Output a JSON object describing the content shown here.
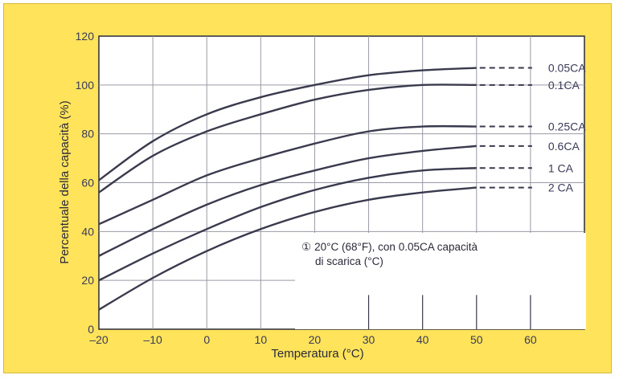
{
  "chart_data": {
    "type": "line",
    "title": "",
    "xlabel": "Temperatura (°C)",
    "ylabel": "Percentuale della capacità (%)",
    "xlim": [
      -20,
      70
    ],
    "ylim": [
      0,
      120
    ],
    "x_ticks": [
      -20,
      -10,
      0,
      10,
      20,
      30,
      40,
      50,
      60
    ],
    "x_tick_labels": [
      "–20",
      "–10",
      "0",
      "10",
      "20",
      "30",
      "40",
      "50",
      "60"
    ],
    "y_ticks": [
      0,
      20,
      40,
      60,
      80,
      100,
      120
    ],
    "grid": true,
    "legend": "none",
    "x": [
      -20,
      -10,
      0,
      10,
      20,
      30,
      40,
      50
    ],
    "series": [
      {
        "name": "0.05CA",
        "values": [
          61,
          77,
          88,
          95,
          100,
          104,
          106,
          107
        ]
      },
      {
        "name": "0.1CA",
        "values": [
          56,
          71,
          81,
          88,
          94,
          98,
          100,
          100
        ]
      },
      {
        "name": "0.25CA",
        "values": [
          43,
          53,
          63,
          70,
          76,
          81,
          83,
          83
        ]
      },
      {
        "name": "0.6CA",
        "values": [
          30,
          41,
          51,
          59,
          65,
          70,
          73,
          75
        ]
      },
      {
        "name": "1 CA",
        "values": [
          20,
          31,
          41,
          50,
          57,
          62,
          65,
          66
        ]
      },
      {
        "name": "2 CA",
        "values": [
          8,
          21,
          32,
          41,
          48,
          53,
          56,
          58
        ]
      }
    ],
    "extension_to_x": 60,
    "annotation": {
      "marker": "①",
      "line1": "20°C (68°F),  con 0.05CA capacità",
      "line2": "di scarica (°C)"
    },
    "colors": {
      "frame": "#ffe35a",
      "plot_area": "#ffffff",
      "grid": "#9a9aa6",
      "curves": "#3a3a4e"
    }
  }
}
